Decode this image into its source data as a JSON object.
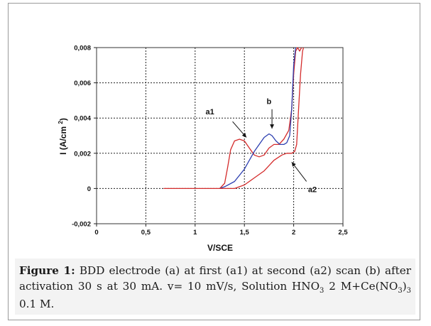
{
  "chart_data": {
    "type": "line",
    "title": "",
    "xlabel": "V/SCE",
    "ylabel": "I (A/cm 2)",
    "xlim": [
      0,
      2.5
    ],
    "ylim": [
      -0.002,
      0.008
    ],
    "x_ticks": [
      0,
      0.5,
      1,
      1.5,
      2,
      2.5
    ],
    "x_tick_labels": [
      "0",
      "0,5",
      "1",
      "1,5",
      "2",
      "2,5"
    ],
    "y_ticks": [
      -0.002,
      0,
      0.002,
      0.004,
      0.006,
      0.008
    ],
    "y_tick_labels": [
      "-0,002",
      "0",
      "0,002",
      "0,004",
      "0,006",
      "0,008"
    ],
    "grid": "dashed",
    "series": [
      {
        "name": "a1",
        "color": "#d42b2b",
        "x": [
          0.68,
          1.0,
          1.25,
          1.3,
          1.33,
          1.36,
          1.4,
          1.45,
          1.5,
          1.55,
          1.6,
          1.65,
          1.7,
          1.75,
          1.8,
          1.85,
          1.9,
          1.95,
          1.98,
          2.0,
          2.02,
          2.04,
          2.06,
          2.08
        ],
        "y": [
          0.0,
          0.0,
          0.0,
          0.0003,
          0.0012,
          0.0022,
          0.0027,
          0.0028,
          0.0027,
          0.0023,
          0.0019,
          0.0018,
          0.0019,
          0.0023,
          0.0025,
          0.0025,
          0.0028,
          0.0033,
          0.0045,
          0.0065,
          0.0078,
          0.008,
          0.0078,
          0.008
        ]
      },
      {
        "name": "b",
        "color": "#2d3fb0",
        "x": [
          1.25,
          1.3,
          1.4,
          1.5,
          1.6,
          1.7,
          1.75,
          1.78,
          1.82,
          1.86,
          1.9,
          1.93,
          1.96,
          1.98,
          2.0,
          2.02
        ],
        "y": [
          0.0,
          0.0001,
          0.0004,
          0.0011,
          0.0021,
          0.0029,
          0.0031,
          0.003,
          0.0027,
          0.0025,
          0.0025,
          0.0026,
          0.003,
          0.0045,
          0.007,
          0.008
        ]
      },
      {
        "name": "a2",
        "color": "#d42b2b",
        "x": [
          1.25,
          1.4,
          1.5,
          1.6,
          1.7,
          1.8,
          1.88,
          1.93,
          1.98,
          2.01,
          2.03,
          2.05,
          2.07,
          2.09,
          2.1
        ],
        "y": [
          0.0,
          0.0,
          0.0002,
          0.0006,
          0.001,
          0.0016,
          0.0019,
          0.002,
          0.002,
          0.0021,
          0.0025,
          0.0045,
          0.0065,
          0.0078,
          0.008
        ]
      }
    ],
    "annotations": [
      {
        "text": "a1",
        "series": "a1"
      },
      {
        "text": "b",
        "series": "b"
      },
      {
        "text": "a2",
        "series": "a2"
      }
    ]
  },
  "caption": {
    "label": "Figure 1:",
    "text_1": "BDD electrode (a) at first (a1) at second (a2) scan (b) after activation 30 s at 30 mA. v= 10 mV/s, Solution HNO",
    "sub_1": "3",
    "text_2": " 2 M+Ce(NO",
    "sub_2": "3",
    "text_3": ")",
    "sub_3": "3",
    "text_4": " 0.1 M."
  }
}
